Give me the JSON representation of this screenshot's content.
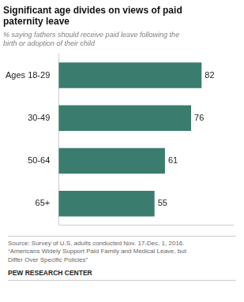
{
  "chart_data": {
    "type": "bar",
    "orientation": "horizontal",
    "title": "Significant age divides on views of paid\npaternity leave",
    "subtitle": "% saying fathers should receive paid leave following the\nbirth or adoption of their child",
    "categories": [
      "Ages 18-29",
      "30-49",
      "50-64",
      "65+"
    ],
    "values": [
      82,
      76,
      61,
      55
    ],
    "color": "#3a7d6e",
    "xlim": [
      0,
      100
    ],
    "data_labels": true,
    "tick_labels": "y",
    "grid": false,
    "annotations": [
      "Source: Survey of U.S. adults conducted Nov. 17-Dec. 1, 2016.\n“Americans Widely Support Paid Family and Medical Leave, but\nDiffer Over Specific Policies”",
      "PEW RESEARCH CENTER"
    ]
  }
}
